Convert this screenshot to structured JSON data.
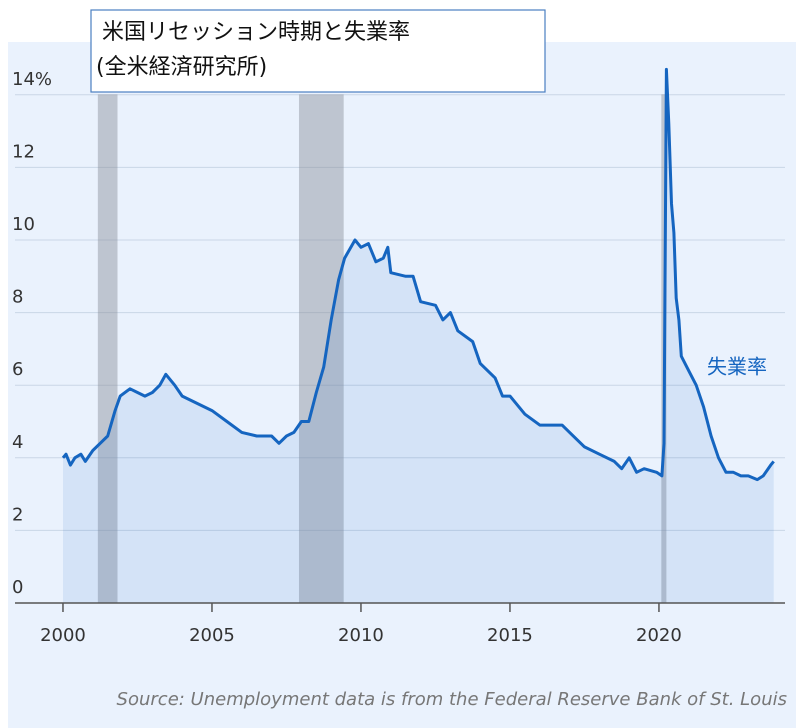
{
  "chart_data": {
    "type": "line",
    "title": "米国リセッション時期と失業率",
    "subtitle": "(全米経済研究所)",
    "source": "Source: Unemployment data is from the Federal Reserve Bank of St. Louis",
    "x": [
      2000.0,
      2000.1,
      2000.25,
      2000.4,
      2000.6,
      2000.75,
      2001.0,
      2001.25,
      2001.5,
      2001.75,
      2001.92,
      2002.25,
      2002.5,
      2002.75,
      2003.0,
      2003.25,
      2003.45,
      2003.75,
      2004.0,
      2004.5,
      2005.0,
      2005.5,
      2006.0,
      2006.5,
      2007.0,
      2007.25,
      2007.5,
      2007.75,
      2008.0,
      2008.25,
      2008.5,
      2008.75,
      2009.0,
      2009.25,
      2009.45,
      2009.8,
      2010.0,
      2010.25,
      2010.5,
      2010.75,
      2010.9,
      2011.0,
      2011.5,
      2011.75,
      2012.0,
      2012.5,
      2012.75,
      2013.0,
      2013.25,
      2013.75,
      2014.0,
      2014.5,
      2014.75,
      2015.0,
      2015.5,
      2016.0,
      2016.5,
      2016.75,
      2017.0,
      2017.5,
      2018.0,
      2018.5,
      2018.75,
      2019.0,
      2019.25,
      2019.5,
      2019.92,
      2020.1,
      2020.17,
      2020.25,
      2020.33,
      2020.42,
      2020.5,
      2020.58,
      2020.67,
      2020.75,
      2021.0,
      2021.25,
      2021.5,
      2021.75,
      2022.0,
      2022.25,
      2022.5,
      2022.75,
      2023.0,
      2023.3,
      2023.5,
      2023.75,
      2023.85
    ],
    "series": [
      {
        "name": "失業率",
        "color": "#1565c0",
        "values": [
          4.0,
          4.1,
          3.8,
          4.0,
          4.1,
          3.9,
          4.2,
          4.4,
          4.6,
          5.3,
          5.7,
          5.9,
          5.8,
          5.7,
          5.8,
          6.0,
          6.3,
          6.0,
          5.7,
          5.5,
          5.3,
          5.0,
          4.7,
          4.6,
          4.6,
          4.4,
          4.6,
          4.7,
          5.0,
          5.0,
          5.8,
          6.5,
          7.8,
          8.9,
          9.5,
          10.0,
          9.8,
          9.9,
          9.4,
          9.5,
          9.8,
          9.1,
          9.0,
          9.0,
          8.3,
          8.2,
          7.8,
          8.0,
          7.5,
          7.2,
          6.6,
          6.2,
          5.7,
          5.7,
          5.2,
          4.9,
          4.9,
          4.9,
          4.7,
          4.3,
          4.1,
          3.9,
          3.7,
          4.0,
          3.6,
          3.7,
          3.6,
          3.5,
          4.4,
          14.7,
          13.2,
          11.0,
          10.2,
          8.4,
          7.8,
          6.8,
          6.4,
          6.0,
          5.4,
          4.6,
          4.0,
          3.6,
          3.6,
          3.5,
          3.5,
          3.4,
          3.5,
          3.8,
          3.9
        ]
      }
    ],
    "recessions": [
      [
        2001.17,
        2001.83
      ],
      [
        2007.92,
        2009.42
      ],
      [
        2020.08,
        2020.25
      ]
    ],
    "xlim": [
      1998.39,
      2024.23
    ],
    "ylim": [
      0,
      15.5
    ],
    "xticks": [
      2000,
      2005,
      2010,
      2015,
      2020
    ],
    "yticks": [
      0,
      2,
      4,
      6,
      8,
      10,
      12,
      {
        "value": 14,
        "label": "14%"
      }
    ],
    "grid": true
  }
}
